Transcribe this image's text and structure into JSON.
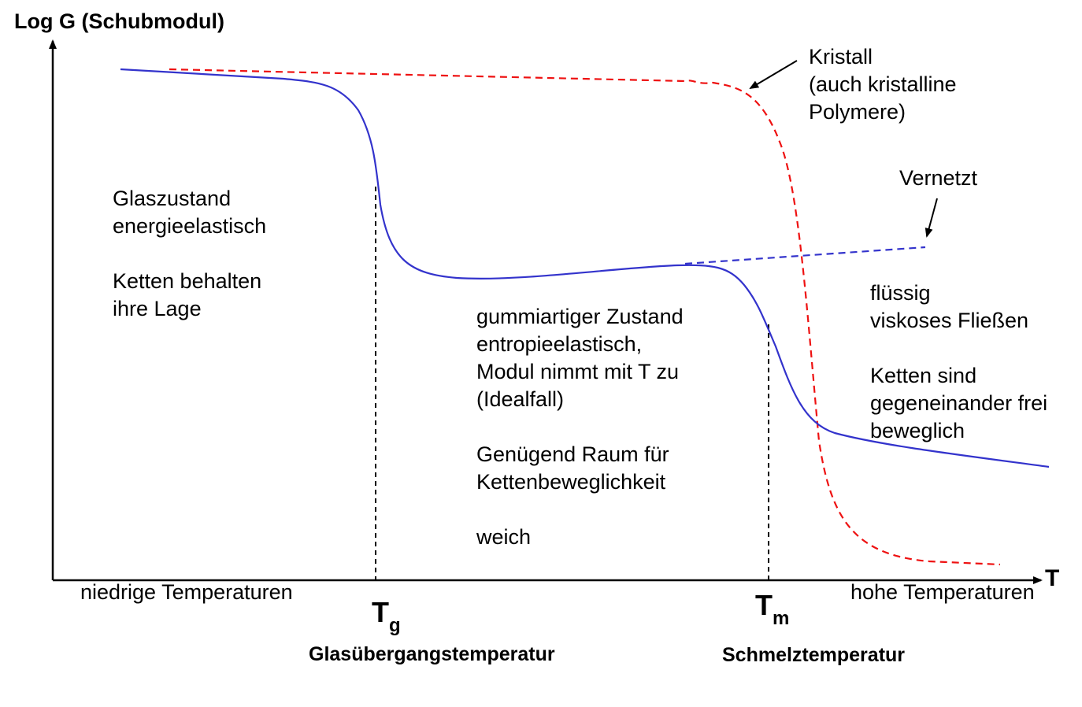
{
  "axes": {
    "y_label": "Log G (Schubmodul)",
    "x_label": "T",
    "x_left_label": "niedrige Temperaturen",
    "x_right_label": "hohe Temperaturen"
  },
  "marks": {
    "tg": {
      "symbol": "T",
      "subscript": "g",
      "name": "Glasübergangstemperatur"
    },
    "tm": {
      "symbol": "T",
      "subscript": "m",
      "name": "Schmelztemperatur"
    }
  },
  "regions": {
    "glass": {
      "line1": "Glaszustand",
      "line2": "energieelastisch",
      "line3": "Ketten behalten",
      "line4": "ihre Lage"
    },
    "rubber": {
      "line1": "gummiartiger Zustand",
      "line2": "entropieelastisch,",
      "line3": "Modul nimmt mit T zu",
      "line4": "(Idealfall)",
      "line5": "Genügend Raum für",
      "line6": "Kettenbeweglichkeit",
      "line7": "weich"
    },
    "liquid": {
      "line1": "flüssig",
      "line2": "viskoses Fließen",
      "line3": "Ketten sind",
      "line4": "gegeneinander frei",
      "line5": "beweglich"
    }
  },
  "annotations": {
    "kristall": {
      "line1": "Kristall",
      "line2": "(auch kristalline",
      "line3": "Polymere)"
    },
    "vernetzt": "Vernetzt"
  },
  "colors": {
    "amorphous_curve": "#3333cc",
    "crystal_curve": "#ee1111",
    "axis": "#000000"
  }
}
